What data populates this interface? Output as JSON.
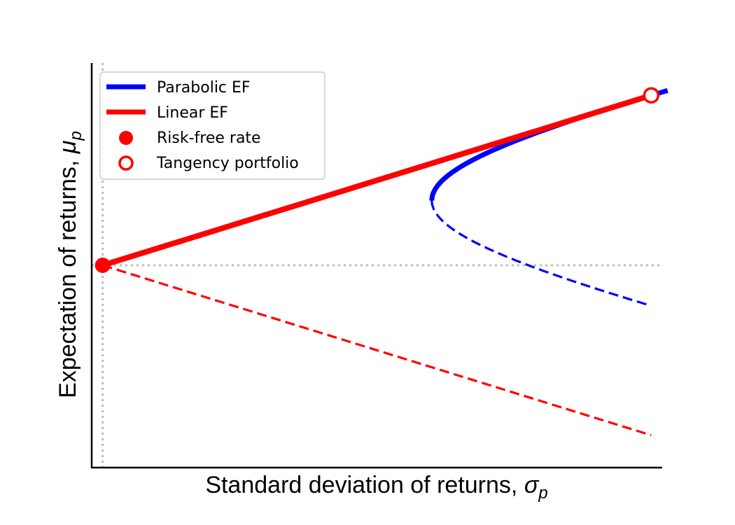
{
  "chart_data": {
    "type": "line",
    "title": "",
    "xlabel": "Standard deviation of returns, ",
    "xlabel_symbol": "σ",
    "xlabel_subscript": "p",
    "ylabel": "Expectation of returns, ",
    "ylabel_symbol": "μ",
    "ylabel_subscript": "p",
    "xlim": [
      -0.02,
      1.02
    ],
    "ylim": [
      -1.0,
      1.0
    ],
    "ticks_shown": false,
    "grid": false,
    "legend_position": "top-left",
    "risk_free": {
      "x": 0.0,
      "y": 0.0
    },
    "tangency": {
      "x": 1.0,
      "y": 0.84
    },
    "min_variance": {
      "x": 0.6,
      "y": 0.32
    },
    "parabola_end_x": 1.03,
    "lower_dashed_end": {
      "x": 1.0,
      "y": -0.84
    },
    "series": [
      {
        "name": "Parabolic EF",
        "color": "#0000ff",
        "style": "solid",
        "role": "efficient frontier (upper branch)"
      },
      {
        "name": "",
        "color": "#0000ff",
        "style": "dashed",
        "role": "inefficient frontier (lower branch)"
      },
      {
        "name": "Linear EF",
        "color": "#ff0000",
        "style": "solid",
        "role": "capital market line"
      },
      {
        "name": "",
        "color": "#ff0000",
        "style": "dashed",
        "role": "lower line"
      },
      {
        "name": "Risk-free rate",
        "color": "#ff0000",
        "marker": "filled-circle"
      },
      {
        "name": "Tangency portfolio",
        "color": "#ff0000",
        "marker": "open-circle"
      }
    ],
    "reference_lines": {
      "color": "#bbbbbb",
      "style": "dotted",
      "vertical_at_x": 0.0,
      "horizontal_at_y": 0.0
    }
  },
  "legend": {
    "items": [
      {
        "label": "Parabolic EF",
        "kind": "line",
        "color": "#0000ff"
      },
      {
        "label": "Linear EF",
        "kind": "line",
        "color": "#ff0000"
      },
      {
        "label": "Risk-free rate",
        "kind": "dot",
        "color": "#ff0000"
      },
      {
        "label": "Tangency portfolio",
        "kind": "ring",
        "color": "#ff0000"
      }
    ]
  }
}
